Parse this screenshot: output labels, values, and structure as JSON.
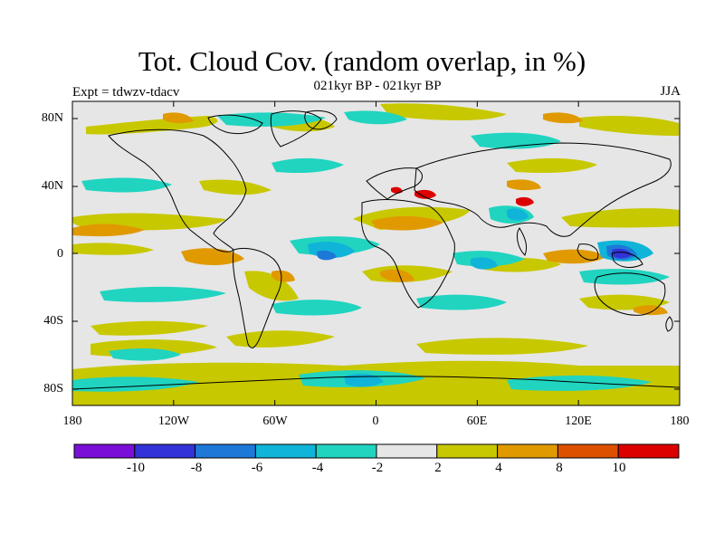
{
  "title": "Tot. Cloud Cov. (random overlap, in %)",
  "subtitle": "021kyr BP - 021kyr BP",
  "experiment": "Expt = tdwzv-tdacv",
  "season": "JJA",
  "map": {
    "projection": "cylindrical-equidistant",
    "background_color": "#e6e6e6",
    "coastline_color": "#000000",
    "lat_tick_labels": [
      "80N",
      "40N",
      "0",
      "40S",
      "80S"
    ],
    "lon_tick_labels": [
      "180",
      "120W",
      "60W",
      "0",
      "60E",
      "120E",
      "180"
    ]
  },
  "colorbar": {
    "colors": [
      "#7a10d8",
      "#3232d8",
      "#1e78d8",
      "#10b4d8",
      "#20d4c0",
      "#e6e6e6",
      "#c8c800",
      "#e09a00",
      "#dc5000",
      "#dc0000"
    ],
    "labels": [
      "-10",
      "-8",
      "-6",
      "-4",
      "-2",
      "2",
      "4",
      "8",
      "10"
    ]
  }
}
